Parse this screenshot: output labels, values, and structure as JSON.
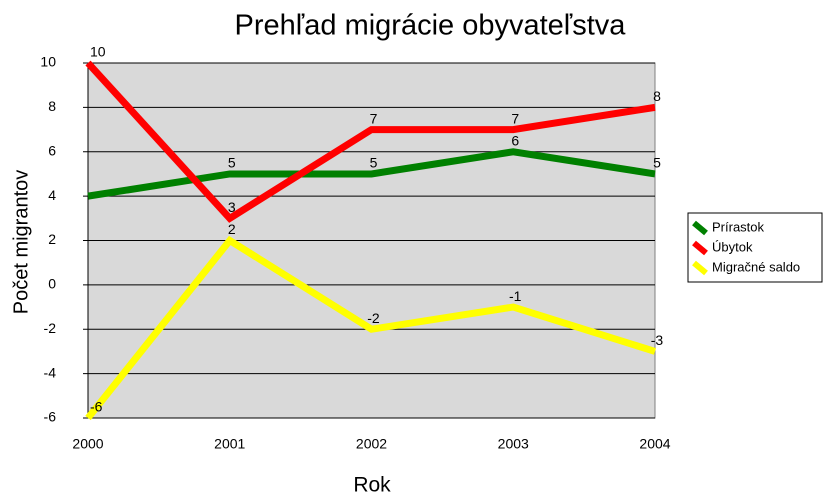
{
  "chart_data": {
    "type": "line",
    "title": "Prehľad migrácie obyvateľstva",
    "x_label": "Rok",
    "y_label": "Počet migrantov",
    "categories": [
      "2000",
      "2001",
      "2002",
      "2003",
      "2004"
    ],
    "series": [
      {
        "name": "Prírastok",
        "color": "#008000",
        "values": [
          4,
          5,
          5,
          6,
          5
        ],
        "value_labels": [
          null,
          "5",
          "5",
          "6",
          "5"
        ]
      },
      {
        "name": "Úbytok",
        "color": "#ff0000",
        "values": [
          10,
          3,
          7,
          7,
          8
        ]
      },
      {
        "name": "Migračné saldo",
        "color": "#ffff00",
        "values": [
          -6,
          2,
          -2,
          -1,
          -3
        ]
      }
    ],
    "ylim": [
      -6,
      10
    ],
    "yticks": [
      -6,
      -4,
      -2,
      0,
      2,
      4,
      6,
      8,
      10
    ],
    "grid": true,
    "legend": "right"
  }
}
